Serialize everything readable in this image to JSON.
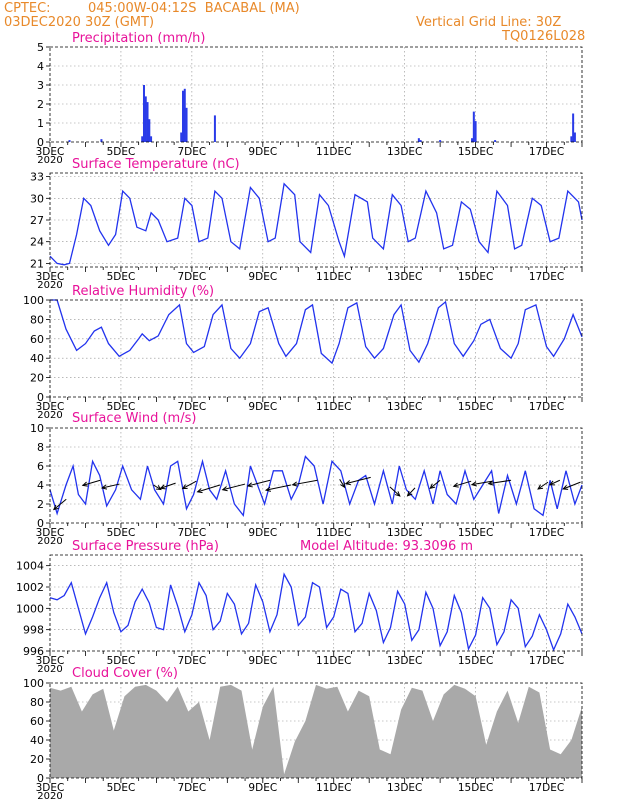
{
  "header": {
    "source": "CPTEC:",
    "location": "045:00W-04:12S  BACABAL (MA)",
    "date": "03DEC2020 30Z (GMT)",
    "grid_note": "Vertical Grid Line: 30Z",
    "model_id": "TQ0126L028"
  },
  "colors": {
    "header": "#e8892a",
    "title": "#e8129a",
    "line": "#2233ee",
    "bar": "#2a3be8",
    "cloud": "#a9a9a9",
    "grid": "#909090"
  },
  "x_axis": {
    "labels": [
      "3DEC",
      "5DEC",
      "7DEC",
      "9DEC",
      "11DEC",
      "13DEC",
      "15DEC",
      "17DEC"
    ],
    "under_label": "2020",
    "range_days": [
      0,
      15
    ]
  },
  "chart_data": [
    {
      "id": "precip",
      "type": "bar",
      "title": "Precipitation (mm/h)",
      "ylim": [
        0,
        5
      ],
      "yticks": [
        "0",
        "1",
        "2",
        "3",
        "4",
        "5"
      ],
      "x_days": [
        0.55,
        1.45,
        2.6,
        2.65,
        2.7,
        2.75,
        2.8,
        2.85,
        3.7,
        3.75,
        3.8,
        3.85,
        4.65,
        10.4,
        10.45,
        11.0,
        11.9,
        11.95,
        12.0,
        12.55,
        14.7,
        14.75,
        14.8
      ],
      "values": [
        0.1,
        0.15,
        0.3,
        3.0,
        2.4,
        2.1,
        1.2,
        0.3,
        0.5,
        2.7,
        2.8,
        1.8,
        1.4,
        0.2,
        0.1,
        0.1,
        0.2,
        1.6,
        1.1,
        0.1,
        0.3,
        1.5,
        0.5
      ]
    },
    {
      "id": "temp",
      "type": "line",
      "title": "Surface Temperature (nC)",
      "ylim": [
        20.5,
        33.5
      ],
      "yticks": [
        "21",
        "24",
        "27",
        "30",
        "33"
      ],
      "x": [
        0,
        0.2,
        0.4,
        0.55,
        0.75,
        0.95,
        1.15,
        1.4,
        1.65,
        1.85,
        2.05,
        2.25,
        2.45,
        2.7,
        2.85,
        3.05,
        3.3,
        3.6,
        3.8,
        4.0,
        4.2,
        4.45,
        4.65,
        4.85,
        5.1,
        5.35,
        5.65,
        5.9,
        6.15,
        6.35,
        6.6,
        6.9,
        7.05,
        7.35,
        7.6,
        7.85,
        8.15,
        8.3,
        8.6,
        8.95,
        9.1,
        9.4,
        9.65,
        9.9,
        10.1,
        10.3,
        10.6,
        10.9,
        11.1,
        11.35,
        11.6,
        11.85,
        12.1,
        12.35,
        12.6,
        12.9,
        13.1,
        13.3,
        13.6,
        13.85,
        14.1,
        14.35,
        14.6,
        14.9,
        15.0
      ],
      "values": [
        22,
        21,
        20.8,
        21,
        25,
        30,
        29,
        25.5,
        23.5,
        25,
        31,
        30,
        26,
        25.5,
        28,
        27,
        24,
        24.5,
        30,
        29,
        24,
        24.5,
        31,
        30,
        24,
        23,
        31.5,
        30,
        24,
        24.5,
        32,
        30.5,
        24,
        22.5,
        30.5,
        29,
        24,
        22,
        30.5,
        29.5,
        24.5,
        23,
        30.5,
        29,
        24,
        24.5,
        31,
        28,
        23,
        23.5,
        29.5,
        28.5,
        24,
        22.5,
        31,
        29,
        23,
        23.5,
        30,
        29,
        24,
        24.5,
        31,
        29.5,
        27
      ]
    },
    {
      "id": "rh",
      "type": "line",
      "title": "Relative Humidity (%)",
      "ylim": [
        0,
        100
      ],
      "yticks": [
        "0",
        "20",
        "40",
        "60",
        "80",
        "100"
      ],
      "x": [
        0,
        0.2,
        0.45,
        0.75,
        1.0,
        1.25,
        1.45,
        1.65,
        1.95,
        2.25,
        2.5,
        2.6,
        2.8,
        3.05,
        3.35,
        3.65,
        3.85,
        4.05,
        4.35,
        4.6,
        4.85,
        5.1,
        5.35,
        5.65,
        5.9,
        6.15,
        6.45,
        6.65,
        6.95,
        7.2,
        7.4,
        7.65,
        7.95,
        8.15,
        8.4,
        8.65,
        8.9,
        9.15,
        9.4,
        9.7,
        9.9,
        10.15,
        10.4,
        10.65,
        10.95,
        11.15,
        11.4,
        11.65,
        11.95,
        12.15,
        12.4,
        12.7,
        13.0,
        13.2,
        13.4,
        13.7,
        14.0,
        14.2,
        14.5,
        14.75,
        15.0
      ],
      "values": [
        100,
        100,
        70,
        48,
        55,
        68,
        72,
        55,
        42,
        48,
        60,
        65,
        58,
        63,
        85,
        95,
        55,
        46,
        52,
        85,
        95,
        50,
        40,
        55,
        88,
        92,
        55,
        42,
        55,
        90,
        95,
        45,
        35,
        55,
        92,
        97,
        52,
        40,
        50,
        85,
        95,
        48,
        36,
        55,
        92,
        98,
        55,
        42,
        58,
        75,
        80,
        50,
        40,
        55,
        90,
        95,
        52,
        42,
        60,
        85,
        62
      ]
    },
    {
      "id": "wind",
      "type": "line",
      "title": "Surface Wind (m/s)",
      "ylim": [
        0,
        10
      ],
      "yticks": [
        "0",
        "2",
        "4",
        "6",
        "8",
        "10"
      ],
      "x": [
        0,
        0.2,
        0.45,
        0.65,
        0.8,
        1.0,
        1.2,
        1.4,
        1.6,
        1.85,
        2.05,
        2.3,
        2.55,
        2.75,
        2.95,
        3.2,
        3.4,
        3.6,
        3.85,
        4.05,
        4.3,
        4.5,
        4.7,
        4.95,
        5.2,
        5.45,
        5.65,
        5.9,
        6.05,
        6.3,
        6.55,
        6.8,
        7.0,
        7.2,
        7.45,
        7.7,
        7.95,
        8.2,
        8.45,
        8.7,
        8.9,
        9.15,
        9.4,
        9.65,
        9.85,
        10.05,
        10.3,
        10.55,
        10.8,
        11.0,
        11.2,
        11.45,
        11.7,
        11.95,
        12.2,
        12.45,
        12.65,
        12.9,
        13.15,
        13.4,
        13.65,
        13.9,
        14.1,
        14.3,
        14.55,
        14.8,
        15.0
      ],
      "values": [
        3.5,
        1.0,
        4.0,
        6.0,
        3.0,
        2.0,
        6.5,
        5.0,
        1.8,
        3.5,
        6.0,
        3.5,
        2.5,
        6.0,
        3.5,
        2.0,
        6.0,
        6.5,
        1.5,
        3.0,
        6.5,
        3.5,
        2.5,
        5.5,
        2.0,
        0.8,
        6.0,
        3.5,
        2.0,
        5.5,
        5.5,
        2.5,
        4.0,
        7.0,
        6.0,
        2.0,
        6.5,
        5.5,
        2.0,
        4.5,
        5.0,
        2.0,
        5.5,
        2.0,
        6.0,
        3.5,
        2.5,
        5.5,
        2.0,
        5.5,
        3.0,
        2.0,
        5.5,
        2.5,
        4.0,
        5.5,
        1.0,
        5.0,
        2.0,
        5.5,
        1.5,
        0.8,
        4.5,
        1.5,
        5.5,
        2.0,
        4.0
      ],
      "arrows": [
        {
          "x": 0.55,
          "y": 2.5,
          "dx": -0.5,
          "dy": -1.8
        },
        {
          "x": 1.7,
          "y": 4.5,
          "dx": -0.7,
          "dy": -0.9
        },
        {
          "x": 2.35,
          "y": 4.1,
          "dx": -0.7,
          "dy": -0.7
        },
        {
          "x": 3.5,
          "y": 4.0,
          "dx": 0.3,
          "dy": -0.8
        },
        {
          "x": 4.25,
          "y": 4.2,
          "dx": -0.6,
          "dy": -0.9
        },
        {
          "x": 4.95,
          "y": 4.4,
          "dx": -0.55,
          "dy": -1.3
        },
        {
          "x": 5.75,
          "y": 4.0,
          "dx": -0.9,
          "dy": -1.2
        },
        {
          "x": 6.6,
          "y": 4.1,
          "dx": -0.9,
          "dy": -1.0
        },
        {
          "x": 7.45,
          "y": 4.5,
          "dx": -0.9,
          "dy": -1.0
        },
        {
          "x": 8.15,
          "y": 4.0,
          "dx": -1.0,
          "dy": -0.9
        },
        {
          "x": 9.05,
          "y": 4.5,
          "dx": -1.0,
          "dy": -0.8
        },
        {
          "x": 9.8,
          "y": 4.6,
          "dx": 0.2,
          "dy": -1.4
        },
        {
          "x": 10.85,
          "y": 4.8,
          "dx": -1.0,
          "dy": -1.1
        },
        {
          "x": 11.5,
          "y": 3.8,
          "dx": 0.4,
          "dy": -1.6
        },
        {
          "x": 12.35,
          "y": 3.7,
          "dx": -0.3,
          "dy": -1.4
        },
        {
          "x": 13.2,
          "y": 4.5,
          "dx": -0.4,
          "dy": -1.4
        },
        {
          "x": 14.25,
          "y": 4.4,
          "dx": -0.7,
          "dy": -0.9
        },
        {
          "x": 14.95,
          "y": 4.4,
          "dx": -0.8,
          "dy": -0.6
        },
        {
          "x": 15.6,
          "y": 4.5,
          "dx": -0.9,
          "dy": -0.6
        },
        {
          "x": 16.85,
          "y": 4.3,
          "dx": -0.4,
          "dy": -1.2
        },
        {
          "x": 17.25,
          "y": 4.5,
          "dx": -0.4,
          "dy": -0.8
        },
        {
          "x": 17.95,
          "y": 4.3,
          "dx": -0.7,
          "dy": -1.2
        }
      ]
    },
    {
      "id": "pres",
      "type": "line",
      "title": "Surface Pressure (hPa)",
      "annotation": "Model Altitude: 93.3096 m",
      "ylim": [
        996,
        1005
      ],
      "yticks": [
        "996",
        "998",
        "1000",
        "1002",
        "1004"
      ],
      "x": [
        0,
        0.2,
        0.4,
        0.6,
        0.8,
        1.0,
        1.2,
        1.4,
        1.6,
        1.8,
        2.0,
        2.2,
        2.4,
        2.6,
        2.8,
        3.0,
        3.2,
        3.4,
        3.6,
        3.8,
        4.0,
        4.2,
        4.4,
        4.6,
        4.8,
        5.0,
        5.2,
        5.4,
        5.6,
        5.8,
        6.0,
        6.2,
        6.4,
        6.6,
        6.8,
        7.0,
        7.2,
        7.4,
        7.6,
        7.8,
        8.0,
        8.2,
        8.4,
        8.6,
        8.8,
        9.0,
        9.2,
        9.4,
        9.6,
        9.8,
        10.0,
        10.2,
        10.4,
        10.6,
        10.8,
        11.0,
        11.2,
        11.4,
        11.6,
        11.8,
        12.0,
        12.2,
        12.4,
        12.6,
        12.8,
        13.0,
        13.2,
        13.4,
        13.6,
        13.8,
        14.0,
        14.2,
        14.4,
        14.6,
        14.8,
        15.0
      ],
      "values": [
        1001,
        1000.8,
        1001.2,
        1002.4,
        1000,
        997.6,
        999.2,
        1001,
        1002.4,
        999.6,
        997.8,
        998.4,
        1000.6,
        1001.8,
        1000.5,
        998.2,
        998,
        1002.2,
        1000.2,
        997.8,
        999.4,
        1002.4,
        1001.2,
        998,
        998.8,
        1001.4,
        1000.4,
        997.6,
        998.6,
        1002.2,
        1000.6,
        997.8,
        999.4,
        1003.2,
        1002,
        998.4,
        999.2,
        1002.4,
        1002,
        998.2,
        999.2,
        1001.8,
        1001.4,
        997.8,
        998.6,
        1001.4,
        999.8,
        996.8,
        998.2,
        1001.6,
        1000.4,
        997,
        998,
        1001.5,
        1000,
        996.5,
        997.8,
        1001.2,
        999.6,
        996.2,
        997.5,
        1001,
        1000,
        996.6,
        997.8,
        1000.8,
        1000,
        996.4,
        997.4,
        999.4,
        998,
        996.1,
        997.6,
        1000.4,
        999.2,
        997.6
      ]
    },
    {
      "id": "cloud",
      "type": "area",
      "title": "Cloud Cover (%)",
      "ylim": [
        0,
        100
      ],
      "yticks": [
        "0",
        "20",
        "40",
        "60",
        "80",
        "100"
      ],
      "x": [
        0,
        0.3,
        0.6,
        0.9,
        1.2,
        1.5,
        1.8,
        2.1,
        2.4,
        2.7,
        3.0,
        3.3,
        3.6,
        3.9,
        4.2,
        4.5,
        4.8,
        5.1,
        5.4,
        5.7,
        6.0,
        6.3,
        6.6,
        6.9,
        7.2,
        7.5,
        7.8,
        8.1,
        8.4,
        8.7,
        9.0,
        9.3,
        9.6,
        9.9,
        10.2,
        10.5,
        10.8,
        11.1,
        11.4,
        11.7,
        12.0,
        12.3,
        12.6,
        12.9,
        13.2,
        13.5,
        13.8,
        14.1,
        14.4,
        14.7,
        15.0
      ],
      "values": [
        95,
        92,
        96,
        70,
        88,
        94,
        50,
        86,
        96,
        98,
        92,
        80,
        96,
        70,
        80,
        40,
        96,
        98,
        92,
        30,
        75,
        96,
        4,
        38,
        60,
        98,
        94,
        96,
        70,
        92,
        86,
        30,
        25,
        72,
        95,
        92,
        60,
        88,
        98,
        94,
        86,
        35,
        70,
        92,
        58,
        96,
        90,
        30,
        25,
        40,
        75
      ]
    }
  ]
}
